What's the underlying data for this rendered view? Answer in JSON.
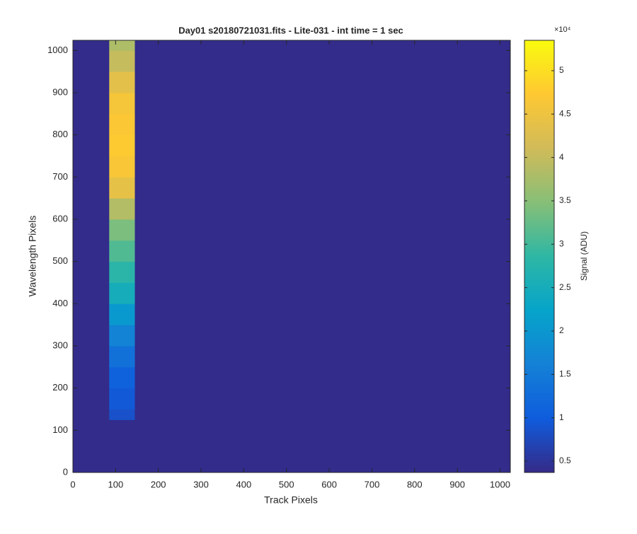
{
  "chart_data": {
    "type": "heatmap",
    "title": "Day01  s20180721031.fits - Lite-031 - int time = 1 sec",
    "xlabel": "Track Pixels",
    "ylabel": "Wavelength Pixels",
    "xlim": [
      0,
      1024
    ],
    "ylim": [
      0,
      1024
    ],
    "xticks": [
      0,
      100,
      200,
      300,
      400,
      500,
      600,
      700,
      800,
      900,
      1000
    ],
    "yticks": [
      0,
      100,
      200,
      300,
      400,
      500,
      600,
      700,
      800,
      900,
      1000
    ],
    "background": 4000,
    "band": {
      "x": [
        85,
        145
      ],
      "y_edges": [
        125,
        150,
        200,
        250,
        300,
        350,
        400,
        450,
        500,
        550,
        600,
        650,
        700,
        750,
        800,
        850,
        900,
        950,
        1000,
        1024
      ],
      "values": [
        8500,
        9500,
        11000,
        13500,
        16500,
        20500,
        25000,
        28000,
        31000,
        34000,
        38500,
        44000,
        46500,
        47500,
        47000,
        46000,
        43500,
        40000,
        38000
      ]
    },
    "colorbar": {
      "label": "Signal (ADU)",
      "exponent_label": "×10⁴",
      "clim": [
        3700,
        53500
      ],
      "ticks": [
        {
          "value": 5000,
          "label": "0.5"
        },
        {
          "value": 10000,
          "label": "1"
        },
        {
          "value": 15000,
          "label": "1.5"
        },
        {
          "value": 20000,
          "label": "2"
        },
        {
          "value": 25000,
          "label": "2.5"
        },
        {
          "value": 30000,
          "label": "3"
        },
        {
          "value": 35000,
          "label": "3.5"
        },
        {
          "value": 40000,
          "label": "4"
        },
        {
          "value": 45000,
          "label": "4.5"
        },
        {
          "value": 50000,
          "label": "5"
        }
      ]
    },
    "colormap": [
      "#352a87",
      "#0f5cdd",
      "#1481d6",
      "#06a4ca",
      "#2eb7a4",
      "#87bf77",
      "#d1bb59",
      "#fec832",
      "#f9fb0e"
    ]
  }
}
